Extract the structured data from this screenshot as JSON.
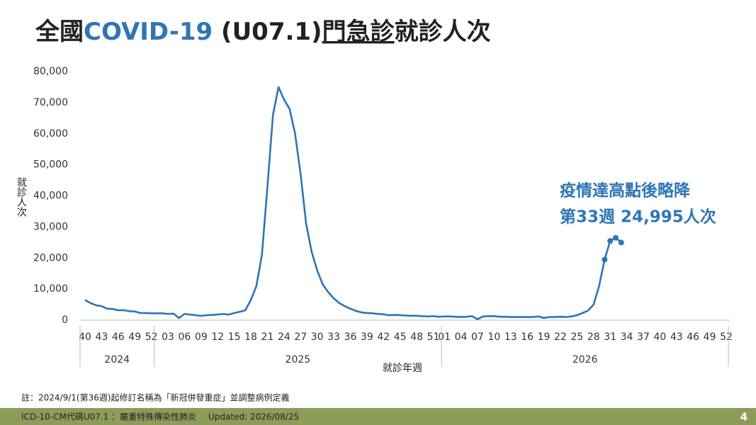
{
  "chart_data": {
    "type": "line",
    "title": [
      "全國",
      "COVID-19",
      " (U07.1)",
      "門急診",
      "就診人次"
    ],
    "y_label": "就診人次",
    "x_label": "就診年週",
    "categories": [
      "40",
      null,
      null,
      "43",
      null,
      null,
      "46",
      null,
      null,
      "49",
      null,
      null,
      "52",
      null,
      null,
      "03",
      null,
      null,
      "06",
      null,
      null,
      "09",
      null,
      null,
      "12",
      null,
      null,
      "15",
      null,
      null,
      "18",
      null,
      null,
      "21",
      null,
      null,
      "24",
      null,
      null,
      "27",
      null,
      null,
      "30",
      null,
      null,
      "33",
      null,
      null,
      "36",
      null,
      null,
      "39",
      null,
      null,
      "42",
      null,
      null,
      "45",
      null,
      null,
      "48",
      null,
      null,
      "51",
      null,
      "01",
      null,
      null,
      "04",
      null,
      null,
      "07",
      null,
      null,
      "10",
      null,
      null,
      "13",
      null,
      null,
      "16",
      null,
      null,
      "19",
      null,
      null,
      "22",
      null,
      null,
      "25",
      null,
      null,
      "28",
      null,
      null,
      "31",
      null,
      null,
      "34",
      null,
      null,
      "37",
      null,
      null,
      "40",
      null,
      null,
      "43",
      null,
      null,
      "46",
      null,
      null,
      "49",
      null,
      null,
      "52"
    ],
    "years": [
      "2024",
      "2025",
      "2026"
    ],
    "values": [
      6500,
      5500,
      4800,
      4500,
      3700,
      3600,
      3200,
      3200,
      2900,
      2800,
      2300,
      2300,
      2200,
      2200,
      2200,
      2000,
      2100,
      700,
      2000,
      1800,
      1600,
      1400,
      1600,
      1700,
      1800,
      2000,
      1800,
      2300,
      2700,
      3200,
      6500,
      11000,
      21000,
      43000,
      66000,
      75000,
      71000,
      68000,
      60000,
      47000,
      31000,
      22000,
      16000,
      11500,
      9000,
      7000,
      5500,
      4500,
      3700,
      3000,
      2500,
      2300,
      2200,
      2000,
      1900,
      1600,
      1700,
      1600,
      1500,
      1400,
      1400,
      1300,
      1200,
      1300,
      1100,
      1200,
      1200,
      1100,
      1000,
      1100,
      1300,
      300,
      1200,
      1300,
      1300,
      1100,
      1100,
      1000,
      1000,
      1000,
      1000,
      1000,
      1200,
      700,
      1000,
      1000,
      1100,
      1000,
      1200,
      1600,
      2300,
      3100,
      5000,
      11000,
      19500,
      25500,
      26500,
      24995,
      null,
      null,
      null,
      null,
      null,
      null,
      null,
      null,
      null,
      null,
      null,
      null,
      null,
      null,
      null,
      null,
      null,
      null,
      null
    ],
    "color": "#2e75b6",
    "ylim": [
      0,
      80000
    ],
    "yticks": [
      0,
      {
        "value": 10000,
        "label": "10,000"
      },
      {
        "value": 20000,
        "label": "20,000"
      },
      {
        "value": 30000,
        "label": "30,000"
      },
      {
        "value": 40000,
        "label": "40,000"
      },
      {
        "value": 50000,
        "label": "50,000"
      },
      {
        "value": 60000,
        "label": "60,000"
      },
      {
        "value": 70000,
        "label": "70,000"
      },
      {
        "value": 80000,
        "label": "80,000"
      }
    ],
    "grid": false,
    "annotation": [
      "疫情達高點後略降",
      "第33週 24,995人次"
    ],
    "note": "註：2024/9/1(第36週)起修訂名稱為「新冠併發重症」並調整病例定義",
    "footer": {
      "code": "ICD-10-CM代碼U07.1 ：嚴重特殊傳染性肺炎",
      "updated": "Updated: 2026/08/25",
      "page": "4"
    }
  }
}
